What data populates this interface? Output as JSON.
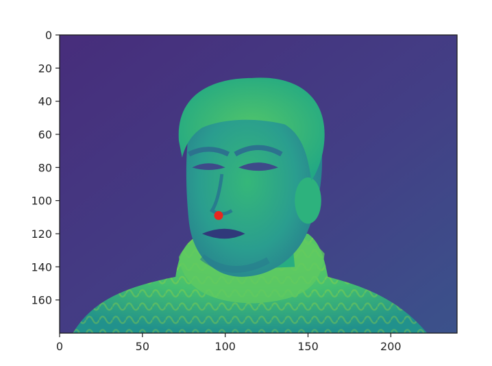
{
  "chart_data": {
    "type": "image",
    "title": "",
    "xlabel": "",
    "ylabel": "",
    "colormap": "viridis",
    "image_width": 240,
    "image_height": 180,
    "xlim": [
      0,
      240
    ],
    "ylim": [
      180,
      0
    ],
    "x_ticks": [
      0,
      50,
      100,
      150,
      200
    ],
    "y_ticks": [
      0,
      20,
      40,
      60,
      80,
      100,
      120,
      140,
      160
    ],
    "x_tick_labels": [
      "0",
      "50",
      "100",
      "150",
      "200"
    ],
    "y_tick_labels": [
      "0",
      "20",
      "40",
      "60",
      "80",
      "100",
      "120",
      "140",
      "160"
    ],
    "points": [
      {
        "x": 96,
        "y": 109,
        "color": "#e8271f"
      }
    ],
    "image_description": "grayscale photo of a man wearing a knitted turtleneck sweater, rendered with the viridis colormap"
  }
}
